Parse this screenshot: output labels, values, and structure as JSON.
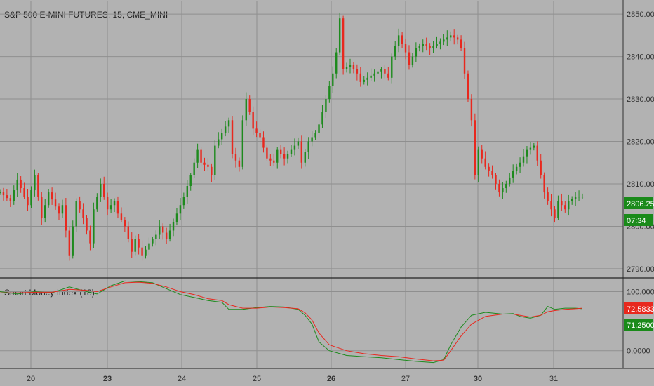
{
  "header": {
    "title": "S&P 500 E-MINI FUTURES, 15, CME_MINI"
  },
  "indicator": {
    "label": "Smart Money Index (18)"
  },
  "colors": {
    "bg": "#b2b2b2",
    "grid": "#8f8f8f",
    "up": "#1d8a1d",
    "down": "#e8281e",
    "axis": "#333333"
  },
  "price_badges": {
    "last": "2806.25",
    "countdown": "07:34"
  },
  "indicator_badges": {
    "signal": "72.5833",
    "value": "71.2500"
  },
  "chart_data": [
    {
      "type": "candlestick",
      "title": "S&P 500 E-MINI FUTURES, 15, CME_MINI",
      "x_tick_labels": [
        "20",
        "23",
        "24",
        "25",
        "26",
        "27",
        "30",
        "31"
      ],
      "y_tick_labels": [
        "2790.00",
        "2800.00",
        "2810.00",
        "2820.00",
        "2830.00",
        "2840.00",
        "2850.00"
      ],
      "ylim": [
        2788,
        2853
      ],
      "grid": true,
      "close_path": [
        [
          0,
          2808
        ],
        [
          3,
          2806
        ],
        [
          5,
          2811
        ],
        [
          8,
          2805
        ],
        [
          10,
          2812
        ],
        [
          12,
          2802
        ],
        [
          14,
          2808
        ],
        [
          17,
          2803
        ],
        [
          18,
          2805
        ],
        [
          20,
          2793
        ],
        [
          21,
          2800
        ],
        [
          22,
          2806
        ],
        [
          24,
          2802
        ],
        [
          26,
          2796
        ],
        [
          27,
          2804
        ],
        [
          29,
          2810
        ],
        [
          31,
          2804
        ],
        [
          33,
          2806
        ],
        [
          34,
          2803
        ],
        [
          36,
          2800
        ],
        [
          38,
          2794
        ],
        [
          39,
          2797
        ],
        [
          41,
          2793
        ],
        [
          43,
          2796
        ],
        [
          45,
          2798
        ],
        [
          46,
          2800
        ],
        [
          48,
          2797
        ],
        [
          49,
          2799
        ],
        [
          51,
          2803
        ],
        [
          53,
          2807
        ],
        [
          55,
          2812
        ],
        [
          57,
          2818
        ],
        [
          58,
          2815
        ],
        [
          60,
          2814
        ],
        [
          61,
          2812
        ],
        [
          62,
          2819
        ],
        [
          64,
          2822
        ],
        [
          66,
          2825
        ],
        [
          67,
          2817
        ],
        [
          69,
          2814
        ],
        [
          70,
          2825
        ],
        [
          71,
          2830
        ],
        [
          72,
          2827
        ],
        [
          73,
          2823
        ],
        [
          75,
          2821
        ],
        [
          77,
          2816
        ],
        [
          79,
          2815
        ],
        [
          80,
          2818
        ],
        [
          82,
          2816
        ],
        [
          84,
          2818
        ],
        [
          86,
          2820
        ],
        [
          87,
          2815
        ],
        [
          89,
          2820
        ],
        [
          91,
          2822
        ],
        [
          92,
          2824
        ],
        [
          94,
          2830
        ],
        [
          96,
          2836
        ],
        [
          97,
          2841
        ],
        [
          98,
          2849
        ],
        [
          99,
          2837
        ],
        [
          101,
          2838
        ],
        [
          103,
          2836
        ],
        [
          104,
          2834
        ],
        [
          106,
          2835
        ],
        [
          108,
          2836
        ],
        [
          110,
          2837
        ],
        [
          112,
          2835
        ],
        [
          113,
          2840
        ],
        [
          115,
          2845
        ],
        [
          117,
          2841
        ],
        [
          118,
          2838
        ],
        [
          120,
          2842
        ],
        [
          122,
          2843
        ],
        [
          124,
          2842
        ],
        [
          126,
          2843
        ],
        [
          128,
          2844
        ],
        [
          130,
          2845
        ],
        [
          132,
          2844
        ],
        [
          133,
          2842
        ],
        [
          135,
          2830
        ],
        [
          136,
          2825
        ],
        [
          137,
          2812
        ],
        [
          138,
          2818
        ],
        [
          140,
          2814
        ],
        [
          142,
          2812
        ],
        [
          144,
          2808
        ],
        [
          146,
          2810
        ],
        [
          148,
          2813
        ],
        [
          150,
          2815
        ],
        [
          152,
          2818
        ],
        [
          154,
          2819
        ],
        [
          156,
          2812
        ],
        [
          157,
          2808
        ],
        [
          158,
          2806
        ],
        [
          160,
          2802
        ],
        [
          161,
          2806
        ],
        [
          163,
          2804
        ],
        [
          164,
          2806
        ],
        [
          166,
          2807
        ],
        [
          168,
          2807
        ]
      ]
    },
    {
      "type": "line",
      "title": "Smart Money Index (18)",
      "y_tick_labels": [
        "0.0000",
        "100.0000"
      ],
      "ylim": [
        -30,
        122
      ],
      "x_tick_labels": [
        "20",
        "23",
        "24",
        "25",
        "26",
        "27",
        "30",
        "31"
      ],
      "series": [
        {
          "points": [
            [
              0,
              100
            ],
            [
              5,
              96
            ],
            [
              10,
              100
            ],
            [
              15,
              98
            ],
            [
              20,
              108
            ],
            [
              25,
              100
            ],
            [
              28,
              96
            ],
            [
              32,
              110
            ],
            [
              36,
              118
            ],
            [
              40,
              117
            ],
            [
              44,
              115
            ],
            [
              48,
              105
            ],
            [
              52,
              95
            ],
            [
              56,
              90
            ],
            [
              60,
              85
            ],
            [
              64,
              82
            ],
            [
              66,
              70
            ],
            [
              70,
              70
            ],
            [
              74,
              73
            ],
            [
              78,
              75
            ],
            [
              82,
              74
            ],
            [
              86,
              70
            ],
            [
              88,
              60
            ],
            [
              90,
              45
            ],
            [
              92,
              15
            ],
            [
              95,
              0
            ],
            [
              100,
              -8
            ],
            [
              105,
              -10
            ],
            [
              110,
              -12
            ],
            [
              115,
              -15
            ],
            [
              120,
              -18
            ],
            [
              125,
              -20
            ],
            [
              128,
              -15
            ],
            [
              130,
              10
            ],
            [
              133,
              40
            ],
            [
              136,
              60
            ],
            [
              140,
              65
            ],
            [
              145,
              62
            ],
            [
              148,
              63
            ],
            [
              150,
              58
            ],
            [
              153,
              55
            ],
            [
              156,
              60
            ],
            [
              158,
              75
            ],
            [
              160,
              70
            ],
            [
              163,
              72
            ],
            [
              166,
              72
            ],
            [
              168,
              71
            ]
          ]
        },
        {
          "points": [
            [
              0,
              98
            ],
            [
              5,
              98
            ],
            [
              10,
              99
            ],
            [
              15,
              99
            ],
            [
              20,
              104
            ],
            [
              25,
              102
            ],
            [
              28,
              100
            ],
            [
              32,
              108
            ],
            [
              36,
              115
            ],
            [
              40,
              116
            ],
            [
              44,
              114
            ],
            [
              48,
              108
            ],
            [
              52,
              100
            ],
            [
              56,
              95
            ],
            [
              60,
              88
            ],
            [
              64,
              85
            ],
            [
              66,
              78
            ],
            [
              70,
              72
            ],
            [
              74,
              72
            ],
            [
              78,
              74
            ],
            [
              82,
              73
            ],
            [
              86,
              71
            ],
            [
              88,
              64
            ],
            [
              90,
              52
            ],
            [
              92,
              30
            ],
            [
              95,
              10
            ],
            [
              100,
              0
            ],
            [
              105,
              -5
            ],
            [
              110,
              -8
            ],
            [
              115,
              -10
            ],
            [
              120,
              -14
            ],
            [
              125,
              -17
            ],
            [
              128,
              -16
            ],
            [
              130,
              0
            ],
            [
              133,
              25
            ],
            [
              136,
              45
            ],
            [
              140,
              58
            ],
            [
              145,
              62
            ],
            [
              148,
              62
            ],
            [
              150,
              60
            ],
            [
              153,
              57
            ],
            [
              156,
              60
            ],
            [
              158,
              66
            ],
            [
              160,
              68
            ],
            [
              163,
              70
            ],
            [
              166,
              71
            ],
            [
              168,
              72
            ]
          ]
        }
      ]
    }
  ]
}
